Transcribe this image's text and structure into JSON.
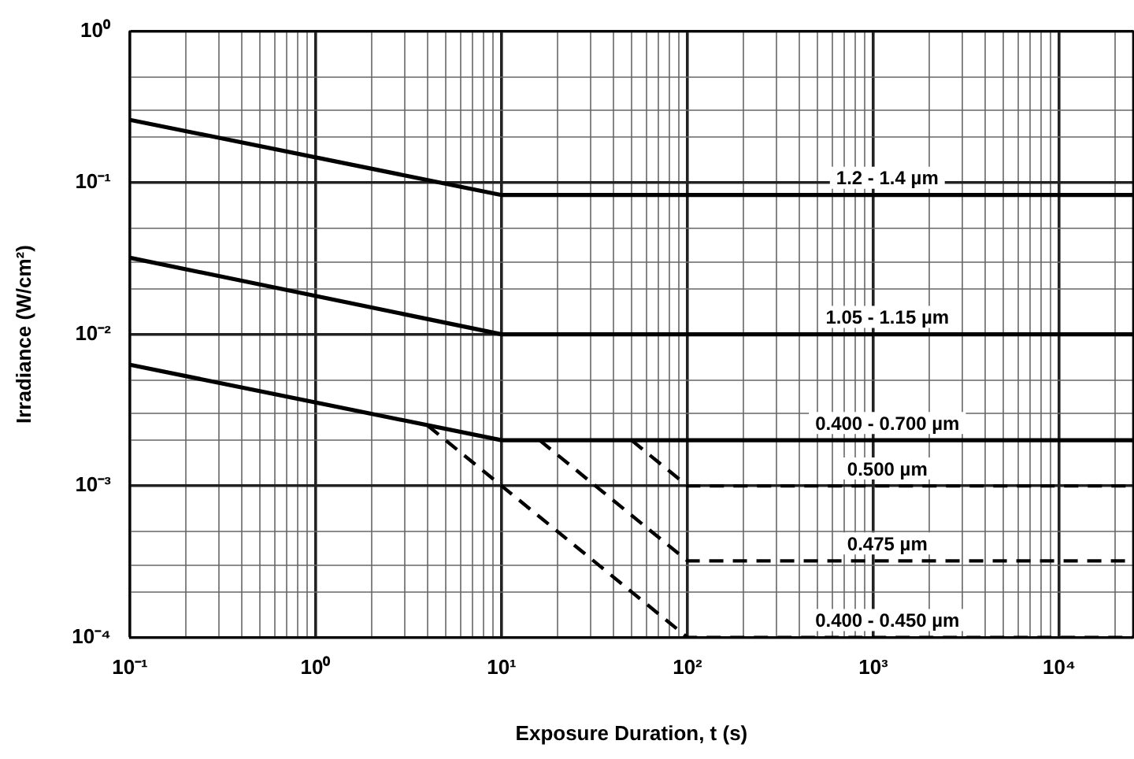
{
  "chart_data": {
    "type": "line",
    "xlabel": "Exposure Duration, t (s)",
    "ylabel": "Irradiance (W/cm²)",
    "log": "xy",
    "grid": true,
    "legend": false,
    "marker": "none",
    "xlim": [
      0.1,
      25000
    ],
    "ylim": [
      0.0001,
      1
    ],
    "xticks": [
      {
        "value": 0.1,
        "label": "10⁻¹"
      },
      {
        "value": 0.2,
        "label": null
      },
      {
        "value": 0.3,
        "label": null
      },
      {
        "value": 0.4,
        "label": null
      },
      {
        "value": 0.5,
        "label": null
      },
      {
        "value": 0.6,
        "label": null
      },
      {
        "value": 0.7,
        "label": null
      },
      {
        "value": 0.8,
        "label": null
      },
      {
        "value": 0.9,
        "label": null
      },
      {
        "value": 1,
        "label": "10⁰"
      },
      {
        "value": 2,
        "label": null
      },
      {
        "value": 3,
        "label": null
      },
      {
        "value": 4,
        "label": null
      },
      {
        "value": 5,
        "label": null
      },
      {
        "value": 6,
        "label": null
      },
      {
        "value": 7,
        "label": null
      },
      {
        "value": 8,
        "label": null
      },
      {
        "value": 9,
        "label": null
      },
      {
        "value": 10,
        "label": "10¹"
      },
      {
        "value": 20,
        "label": null
      },
      {
        "value": 30,
        "label": null
      },
      {
        "value": 40,
        "label": null
      },
      {
        "value": 50,
        "label": null
      },
      {
        "value": 60,
        "label": null
      },
      {
        "value": 70,
        "label": null
      },
      {
        "value": 80,
        "label": null
      },
      {
        "value": 90,
        "label": null
      },
      {
        "value": 100,
        "label": "10²"
      },
      {
        "value": 200,
        "label": null
      },
      {
        "value": 300,
        "label": null
      },
      {
        "value": 400,
        "label": null
      },
      {
        "value": 500,
        "label": null
      },
      {
        "value": 600,
        "label": null
      },
      {
        "value": 700,
        "label": null
      },
      {
        "value": 800,
        "label": null
      },
      {
        "value": 900,
        "label": null
      },
      {
        "value": 1000,
        "label": "10³"
      },
      {
        "value": 2000,
        "label": null
      },
      {
        "value": 3000,
        "label": null
      },
      {
        "value": 4000,
        "label": null
      },
      {
        "value": 5000,
        "label": null
      },
      {
        "value": 6000,
        "label": null
      },
      {
        "value": 7000,
        "label": null
      },
      {
        "value": 8000,
        "label": null
      },
      {
        "value": 9000,
        "label": null
      },
      {
        "value": 10000,
        "label": "10⁴"
      },
      {
        "value": 20000,
        "label": null
      }
    ],
    "yticks": [
      {
        "value": 0.0001,
        "label": "10⁻⁴"
      },
      {
        "value": 0.0002,
        "label": null
      },
      {
        "value": 0.0003,
        "label": null
      },
      {
        "value": 0.0005,
        "label": null
      },
      {
        "value": 0.001,
        "label": "10⁻³"
      },
      {
        "value": 0.002,
        "label": null
      },
      {
        "value": 0.003,
        "label": null
      },
      {
        "value": 0.005,
        "label": null
      },
      {
        "value": 0.01,
        "label": "10⁻²"
      },
      {
        "value": 0.02,
        "label": null
      },
      {
        "value": 0.03,
        "label": null
      },
      {
        "value": 0.05,
        "label": null
      },
      {
        "value": 0.1,
        "label": "10⁻¹"
      },
      {
        "value": 0.2,
        "label": null
      },
      {
        "value": 0.3,
        "label": null
      },
      {
        "value": 0.5,
        "label": null
      },
      {
        "value": 1,
        "label": "10⁰"
      }
    ],
    "series": [
      {
        "name": "1.2 - 1.4 µm",
        "color": "#000000",
        "line_style": "solid",
        "x": [
          0.1,
          10,
          25000
        ],
        "values": [
          0.26,
          0.083,
          0.083
        ]
      },
      {
        "name": "1.05 - 1.15 µm",
        "color": "#000000",
        "line_style": "solid",
        "x": [
          0.1,
          10,
          25000
        ],
        "values": [
          0.032,
          0.01,
          0.01
        ]
      },
      {
        "name": "0.400 - 0.700 µm",
        "color": "#000000",
        "line_style": "solid",
        "x": [
          0.1,
          10,
          25000
        ],
        "values": [
          0.0063,
          0.002,
          0.002
        ]
      },
      {
        "name": "0.500 µm",
        "color": "#000000",
        "line_style": "dashed",
        "x": [
          50,
          100,
          25000
        ],
        "values": [
          0.002,
          0.001,
          0.001
        ]
      },
      {
        "name": "0.475 µm",
        "color": "#000000",
        "line_style": "dashed",
        "x": [
          16,
          100,
          25000
        ],
        "values": [
          0.002,
          0.00032,
          0.00032
        ]
      },
      {
        "name": "0.400 - 0.450 µm",
        "color": "#000000",
        "line_style": "dashed",
        "x": [
          4,
          100,
          25000
        ],
        "values": [
          0.0025,
          0.0001,
          0.0001
        ]
      }
    ]
  }
}
